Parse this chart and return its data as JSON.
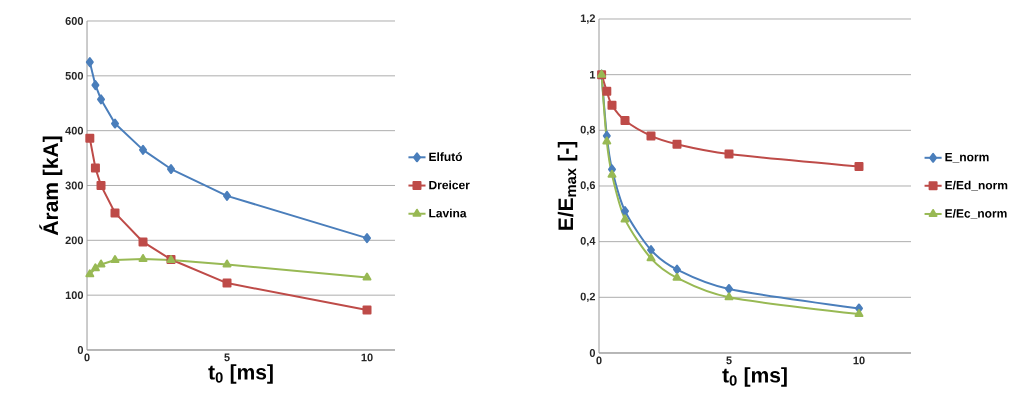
{
  "chart_data": [
    {
      "type": "line",
      "xlabel": "t$_{0}$ [ms]",
      "ylabel": "Áram [kA]",
      "xlim": [
        0,
        11
      ],
      "xticks": [
        0,
        5,
        10
      ],
      "ylim": [
        0,
        600
      ],
      "yticks": [
        0,
        100,
        200,
        300,
        400,
        500,
        600
      ],
      "grid": "y",
      "legend": "right",
      "x": [
        0.1,
        0.3,
        0.5,
        1,
        2,
        3,
        5,
        10
      ],
      "series": [
        {
          "name": "Elfutó",
          "color": "#4a7ebb",
          "marker": "diamond",
          "values": [
            525,
            483,
            457,
            413,
            365,
            330,
            281,
            204
          ]
        },
        {
          "name": "Dreicer",
          "color": "#be4b48",
          "marker": "square",
          "values": [
            386,
            332,
            300,
            250,
            197,
            165,
            122,
            73
          ]
        },
        {
          "name": "Lavina",
          "color": "#98b954",
          "marker": "triangle",
          "values": [
            138,
            149,
            156,
            164,
            166,
            164,
            156,
            132
          ]
        }
      ]
    },
    {
      "type": "line",
      "xlabel": "t$_{0}$ [ms]",
      "ylabel": "E/E$_{max}$ [-]",
      "xlim": [
        0,
        12
      ],
      "xticks": [
        0,
        5,
        10
      ],
      "ylim": [
        0,
        1.2
      ],
      "yticks": [
        0,
        {
          "value": 0.2,
          "label": "0,2"
        },
        {
          "value": 0.4,
          "label": "0,4"
        },
        {
          "value": 0.6,
          "label": "0,6"
        },
        {
          "value": 0.8,
          "label": "0,8"
        },
        1,
        {
          "value": 1.2,
          "label": "1,2"
        }
      ],
      "grid": "y",
      "legend": "right",
      "x": [
        0.1,
        0.3,
        0.5,
        1,
        2,
        3,
        5,
        10
      ],
      "series": [
        {
          "name": "E_norm",
          "color": "#4a7ebb",
          "marker": "diamond",
          "values": [
            1.0,
            0.78,
            0.66,
            0.51,
            0.37,
            0.3,
            0.23,
            0.16
          ]
        },
        {
          "name": "E/Ed_norm",
          "color": "#be4b48",
          "marker": "square",
          "values": [
            1.0,
            0.94,
            0.89,
            0.835,
            0.78,
            0.75,
            0.715,
            0.67
          ]
        },
        {
          "name": "E/Ec_norm",
          "color": "#98b954",
          "marker": "triangle",
          "values": [
            1.0,
            0.76,
            0.64,
            0.48,
            0.34,
            0.27,
            0.2,
            0.14
          ]
        }
      ]
    }
  ]
}
